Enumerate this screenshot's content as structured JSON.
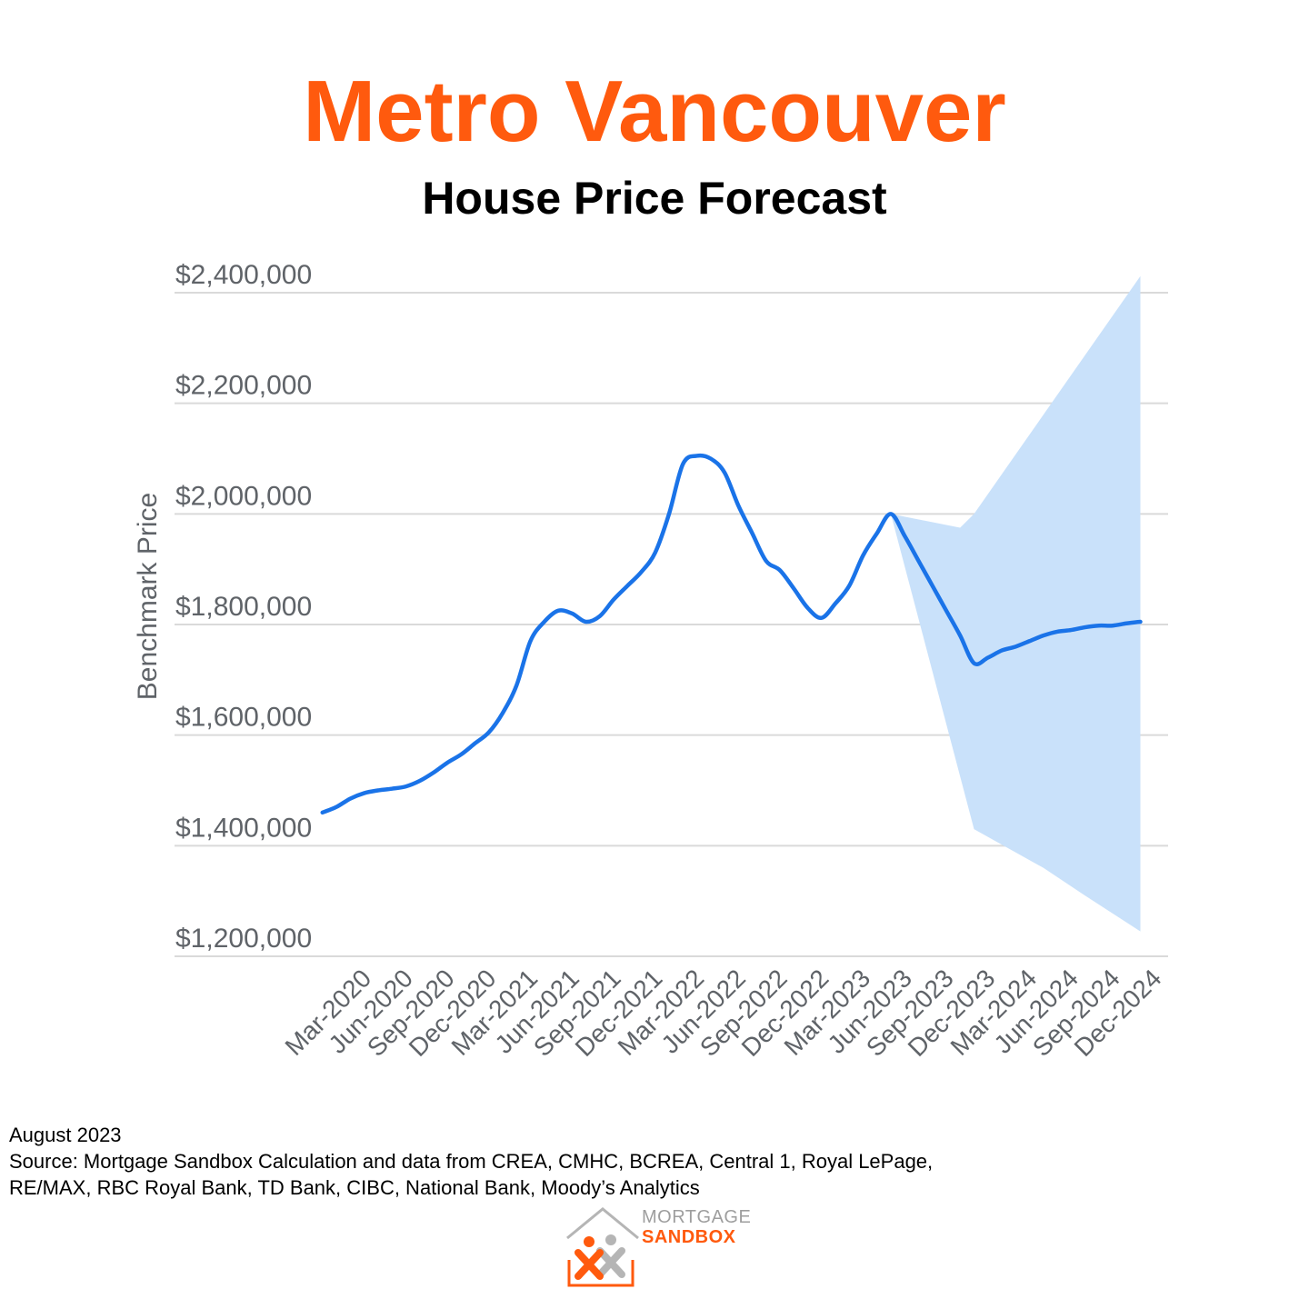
{
  "header": {
    "title": "Metro Vancouver",
    "subtitle": "House Price Forecast",
    "title_color": "#FF5A0E"
  },
  "chart_data": {
    "type": "line",
    "title": "Metro Vancouver",
    "subtitle": "House Price Forecast",
    "xlabel": "",
    "ylabel": "Benchmark Price",
    "ylim": [
      1200000,
      2400000
    ],
    "y_ticks": [
      1200000,
      1400000,
      1600000,
      1800000,
      2000000,
      2200000,
      2400000
    ],
    "y_tick_labels": [
      "$1,200,000",
      "$1,400,000",
      "$1,600,000",
      "$1,800,000",
      "$2,000,000",
      "$2,200,000",
      "$2,400,000"
    ],
    "x_tick_labels": [
      "Mar-2020",
      "Jun-2020",
      "Sep-2020",
      "Dec-2020",
      "Mar-2021",
      "Jun-2021",
      "Sep-2021",
      "Dec-2021",
      "Mar-2022",
      "Jun-2022",
      "Sep-2022",
      "Dec-2022",
      "Mar-2023",
      "Jun-2023",
      "Sep-2023",
      "Dec-2023",
      "Mar-2024",
      "Jun-2024",
      "Sep-2024",
      "Dec-2024"
    ],
    "grid": true,
    "legend": "none",
    "line_color": "#1A73E8",
    "band_color": "#C9E1FA",
    "series": [
      {
        "values": [
          [
            "Feb-2020",
            1460000
          ],
          [
            "Mar-2020",
            1470000
          ],
          [
            "Apr-2020",
            1485000
          ],
          [
            "May-2020",
            1495000
          ],
          [
            "Jun-2020",
            1500000
          ],
          [
            "Jul-2020",
            1503000
          ],
          [
            "Aug-2020",
            1507000
          ],
          [
            "Sep-2020",
            1517000
          ],
          [
            "Oct-2020",
            1532000
          ],
          [
            "Nov-2020",
            1550000
          ],
          [
            "Dec-2020",
            1565000
          ],
          [
            "Jan-2021",
            1585000
          ],
          [
            "Feb-2021",
            1605000
          ],
          [
            "Mar-2021",
            1640000
          ],
          [
            "Apr-2021",
            1690000
          ],
          [
            "May-2021",
            1770000
          ],
          [
            "Jun-2021",
            1805000
          ],
          [
            "Jul-2021",
            1825000
          ],
          [
            "Aug-2021",
            1820000
          ],
          [
            "Sep-2021",
            1805000
          ],
          [
            "Oct-2021",
            1815000
          ],
          [
            "Nov-2021",
            1845000
          ],
          [
            "Dec-2021",
            1870000
          ],
          [
            "Jan-2022",
            1895000
          ],
          [
            "Feb-2022",
            1930000
          ],
          [
            "Mar-2022",
            2000000
          ],
          [
            "Apr-2022",
            2090000
          ],
          [
            "May-2022",
            2105000
          ],
          [
            "Jun-2022",
            2100000
          ],
          [
            "Jul-2022",
            2075000
          ],
          [
            "Aug-2022",
            2015000
          ],
          [
            "Sep-2022",
            1965000
          ],
          [
            "Oct-2022",
            1915000
          ],
          [
            "Nov-2022",
            1898000
          ],
          [
            "Dec-2022",
            1865000
          ],
          [
            "Jan-2023",
            1830000
          ],
          [
            "Feb-2023",
            1812000
          ],
          [
            "Mar-2023",
            1838000
          ],
          [
            "Apr-2023",
            1870000
          ],
          [
            "May-2023",
            1925000
          ],
          [
            "Jun-2023",
            1965000
          ],
          [
            "Jul-2023",
            2000000
          ],
          [
            "Aug-2023",
            1960000
          ],
          [
            "Sep-2023",
            1915000
          ],
          [
            "Oct-2023",
            1870000
          ],
          [
            "Nov-2023",
            1825000
          ],
          [
            "Dec-2023",
            1780000
          ],
          [
            "Jan-2024",
            1730000
          ],
          [
            "Feb-2024",
            1740000
          ],
          [
            "Mar-2024",
            1753000
          ],
          [
            "Apr-2024",
            1760000
          ],
          [
            "May-2024",
            1770000
          ],
          [
            "Jun-2024",
            1780000
          ],
          [
            "Jul-2024",
            1787000
          ],
          [
            "Aug-2024",
            1790000
          ],
          [
            "Sep-2024",
            1795000
          ],
          [
            "Oct-2024",
            1798000
          ],
          [
            "Nov-2024",
            1798000
          ],
          [
            "Dec-2024",
            1802000
          ],
          [
            "Jan-2025",
            1805000
          ]
        ]
      }
    ],
    "forecast_band": {
      "upper": [
        [
          "Jul-2023",
          2000000
        ],
        [
          "Dec-2023",
          1975000
        ],
        [
          "Jan-2024",
          2000000
        ],
        [
          "Jan-2025",
          2430000
        ]
      ],
      "lower": [
        [
          "Jul-2023",
          2000000
        ],
        [
          "Jan-2024",
          1430000
        ],
        [
          "Jun-2024",
          1360000
        ],
        [
          "Sep-2024",
          1310000
        ],
        [
          "Jan-2025",
          1245000
        ]
      ]
    }
  },
  "footer": {
    "date": "August 2023",
    "source_line1": "Source: Mortgage Sandbox Calculation and data from CREA, CMHC, BCREA, Central 1, Royal LePage,",
    "source_line2": "RE/MAX, RBC Royal Bank, TD Bank, CIBC, National Bank, Moody’s Analytics"
  },
  "logo": {
    "line1": "MORTGAGE",
    "line2": "SANDBOX",
    "accent": "#FF5A0E",
    "gray": "#9E9E9E"
  }
}
